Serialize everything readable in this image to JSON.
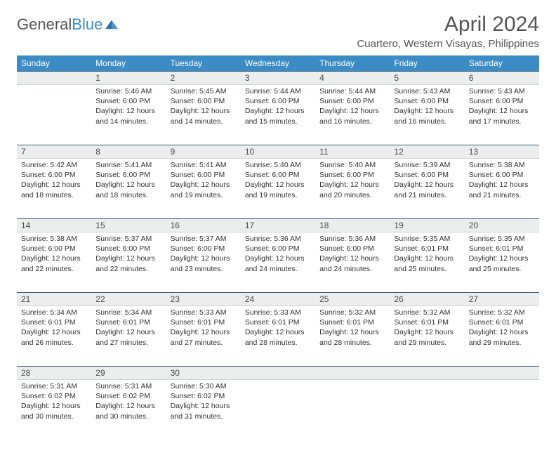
{
  "brand": {
    "name_part1": "General",
    "name_part2": "Blue"
  },
  "title": "April 2024",
  "location": "Cuartero, Western Visayas, Philippines",
  "colors": {
    "header_bg": "#3b8bc4",
    "header_text": "#ffffff",
    "daynum_bg": "#eceded",
    "row_border": "#3b5b7a",
    "text": "#333333",
    "title_text": "#555555"
  },
  "fonts": {
    "title_size": 30,
    "location_size": 15,
    "dayheader_size": 12,
    "body_size": 10.5
  },
  "day_headers": [
    "Sunday",
    "Monday",
    "Tuesday",
    "Wednesday",
    "Thursday",
    "Friday",
    "Saturday"
  ],
  "weeks": [
    [
      null,
      {
        "d": "1",
        "sr": "5:46 AM",
        "ss": "6:00 PM",
        "dl": "12 hours and 14 minutes."
      },
      {
        "d": "2",
        "sr": "5:45 AM",
        "ss": "6:00 PM",
        "dl": "12 hours and 14 minutes."
      },
      {
        "d": "3",
        "sr": "5:44 AM",
        "ss": "6:00 PM",
        "dl": "12 hours and 15 minutes."
      },
      {
        "d": "4",
        "sr": "5:44 AM",
        "ss": "6:00 PM",
        "dl": "12 hours and 16 minutes."
      },
      {
        "d": "5",
        "sr": "5:43 AM",
        "ss": "6:00 PM",
        "dl": "12 hours and 16 minutes."
      },
      {
        "d": "6",
        "sr": "5:43 AM",
        "ss": "6:00 PM",
        "dl": "12 hours and 17 minutes."
      }
    ],
    [
      {
        "d": "7",
        "sr": "5:42 AM",
        "ss": "6:00 PM",
        "dl": "12 hours and 18 minutes."
      },
      {
        "d": "8",
        "sr": "5:41 AM",
        "ss": "6:00 PM",
        "dl": "12 hours and 18 minutes."
      },
      {
        "d": "9",
        "sr": "5:41 AM",
        "ss": "6:00 PM",
        "dl": "12 hours and 19 minutes."
      },
      {
        "d": "10",
        "sr": "5:40 AM",
        "ss": "6:00 PM",
        "dl": "12 hours and 19 minutes."
      },
      {
        "d": "11",
        "sr": "5:40 AM",
        "ss": "6:00 PM",
        "dl": "12 hours and 20 minutes."
      },
      {
        "d": "12",
        "sr": "5:39 AM",
        "ss": "6:00 PM",
        "dl": "12 hours and 21 minutes."
      },
      {
        "d": "13",
        "sr": "5:38 AM",
        "ss": "6:00 PM",
        "dl": "12 hours and 21 minutes."
      }
    ],
    [
      {
        "d": "14",
        "sr": "5:38 AM",
        "ss": "6:00 PM",
        "dl": "12 hours and 22 minutes."
      },
      {
        "d": "15",
        "sr": "5:37 AM",
        "ss": "6:00 PM",
        "dl": "12 hours and 22 minutes."
      },
      {
        "d": "16",
        "sr": "5:37 AM",
        "ss": "6:00 PM",
        "dl": "12 hours and 23 minutes."
      },
      {
        "d": "17",
        "sr": "5:36 AM",
        "ss": "6:00 PM",
        "dl": "12 hours and 24 minutes."
      },
      {
        "d": "18",
        "sr": "5:36 AM",
        "ss": "6:00 PM",
        "dl": "12 hours and 24 minutes."
      },
      {
        "d": "19",
        "sr": "5:35 AM",
        "ss": "6:01 PM",
        "dl": "12 hours and 25 minutes."
      },
      {
        "d": "20",
        "sr": "5:35 AM",
        "ss": "6:01 PM",
        "dl": "12 hours and 25 minutes."
      }
    ],
    [
      {
        "d": "21",
        "sr": "5:34 AM",
        "ss": "6:01 PM",
        "dl": "12 hours and 26 minutes."
      },
      {
        "d": "22",
        "sr": "5:34 AM",
        "ss": "6:01 PM",
        "dl": "12 hours and 27 minutes."
      },
      {
        "d": "23",
        "sr": "5:33 AM",
        "ss": "6:01 PM",
        "dl": "12 hours and 27 minutes."
      },
      {
        "d": "24",
        "sr": "5:33 AM",
        "ss": "6:01 PM",
        "dl": "12 hours and 28 minutes."
      },
      {
        "d": "25",
        "sr": "5:32 AM",
        "ss": "6:01 PM",
        "dl": "12 hours and 28 minutes."
      },
      {
        "d": "26",
        "sr": "5:32 AM",
        "ss": "6:01 PM",
        "dl": "12 hours and 29 minutes."
      },
      {
        "d": "27",
        "sr": "5:32 AM",
        "ss": "6:01 PM",
        "dl": "12 hours and 29 minutes."
      }
    ],
    [
      {
        "d": "28",
        "sr": "5:31 AM",
        "ss": "6:02 PM",
        "dl": "12 hours and 30 minutes."
      },
      {
        "d": "29",
        "sr": "5:31 AM",
        "ss": "6:02 PM",
        "dl": "12 hours and 30 minutes."
      },
      {
        "d": "30",
        "sr": "5:30 AM",
        "ss": "6:02 PM",
        "dl": "12 hours and 31 minutes."
      },
      null,
      null,
      null,
      null
    ]
  ],
  "labels": {
    "sunrise": "Sunrise:",
    "sunset": "Sunset:",
    "daylight": "Daylight:"
  }
}
